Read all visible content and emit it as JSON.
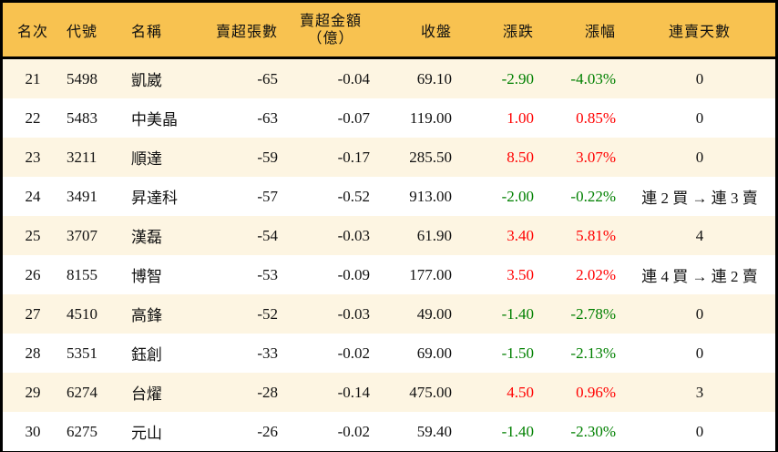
{
  "headers": {
    "rank": "名次",
    "code": "代號",
    "name": "名稱",
    "sell_lots": "賣超張數",
    "sell_amount_1": "賣超金額",
    "sell_amount_2": "（億）",
    "close": "收盤",
    "change": "漲跌",
    "pct": "漲幅",
    "streak": "連賣天數"
  },
  "colors": {
    "header_bg": "#f8c250",
    "up": "#ff0000",
    "down": "#008000",
    "row_alt": "#fdf5e2"
  },
  "rows": [
    {
      "rank": "21",
      "code": "5498",
      "name": "凱崴",
      "lots": "-65",
      "amount": "-0.04",
      "close": "69.10",
      "change": "-2.90",
      "pct": "-4.03%",
      "streak": "0",
      "dir": "down"
    },
    {
      "rank": "22",
      "code": "5483",
      "name": "中美晶",
      "lots": "-63",
      "amount": "-0.07",
      "close": "119.00",
      "change": "1.00",
      "pct": "0.85%",
      "streak": "0",
      "dir": "up"
    },
    {
      "rank": "23",
      "code": "3211",
      "name": "順達",
      "lots": "-59",
      "amount": "-0.17",
      "close": "285.50",
      "change": "8.50",
      "pct": "3.07%",
      "streak": "0",
      "dir": "up"
    },
    {
      "rank": "24",
      "code": "3491",
      "name": "昇達科",
      "lots": "-57",
      "amount": "-0.52",
      "close": "913.00",
      "change": "-2.00",
      "pct": "-0.22%",
      "streak": "連 2 買 → 連 3 賣",
      "dir": "down"
    },
    {
      "rank": "25",
      "code": "3707",
      "name": "漢磊",
      "lots": "-54",
      "amount": "-0.03",
      "close": "61.90",
      "change": "3.40",
      "pct": "5.81%",
      "streak": "4",
      "dir": "up"
    },
    {
      "rank": "26",
      "code": "8155",
      "name": "博智",
      "lots": "-53",
      "amount": "-0.09",
      "close": "177.00",
      "change": "3.50",
      "pct": "2.02%",
      "streak": "連 4 買 → 連 2 賣",
      "dir": "up"
    },
    {
      "rank": "27",
      "code": "4510",
      "name": "高鋒",
      "lots": "-52",
      "amount": "-0.03",
      "close": "49.00",
      "change": "-1.40",
      "pct": "-2.78%",
      "streak": "0",
      "dir": "down"
    },
    {
      "rank": "28",
      "code": "5351",
      "name": "鈺創",
      "lots": "-33",
      "amount": "-0.02",
      "close": "69.00",
      "change": "-1.50",
      "pct": "-2.13%",
      "streak": "0",
      "dir": "down"
    },
    {
      "rank": "29",
      "code": "6274",
      "name": "台燿",
      "lots": "-28",
      "amount": "-0.14",
      "close": "475.00",
      "change": "4.50",
      "pct": "0.96%",
      "streak": "3",
      "dir": "up"
    },
    {
      "rank": "30",
      "code": "6275",
      "name": "元山",
      "lots": "-26",
      "amount": "-0.02",
      "close": "59.40",
      "change": "-1.40",
      "pct": "-2.30%",
      "streak": "0",
      "dir": "down"
    }
  ]
}
